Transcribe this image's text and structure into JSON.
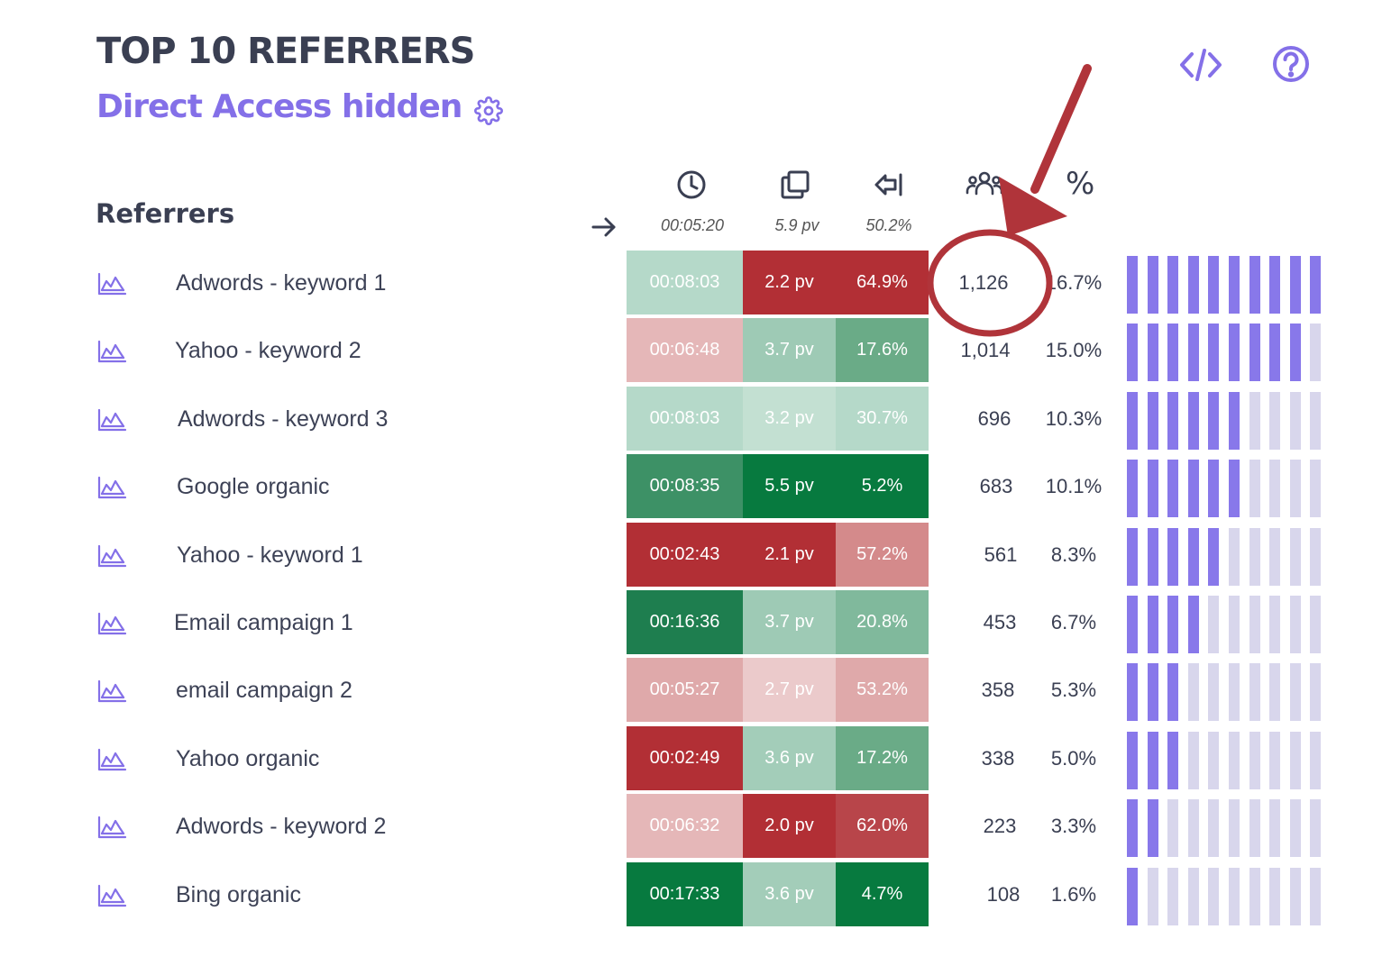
{
  "header": {
    "title": "TOP 10 REFERRERS",
    "subtitle": "Direct Access hidden",
    "icons": [
      "gear-icon",
      "code-icon",
      "help-icon"
    ]
  },
  "table": {
    "section_label": "Referrers",
    "columns": [
      {
        "icon": "clock-icon",
        "average": "00:05:20"
      },
      {
        "icon": "pages-icon",
        "average": "5.9 pv"
      },
      {
        "icon": "exit-icon",
        "average": "50.2%"
      },
      {
        "icon": "users-icon"
      },
      {
        "icon": "percent-icon",
        "label": "%"
      }
    ],
    "rows": [
      {
        "name": "Adwords - keyword 1",
        "time": "00:08:03",
        "pv": "2.2 pv",
        "bounce": "64.9%",
        "visits": "1,126",
        "pct": "16.7%",
        "share_segments": 10,
        "colors": {
          "time": "#b5d9c9",
          "pv": "#b22f35",
          "bounce": "#b22f35"
        }
      },
      {
        "name": "Yahoo - keyword 2",
        "time": "00:06:48",
        "pv": "3.7 pv",
        "bounce": "17.6%",
        "visits": "1,014",
        "pct": "15.0%",
        "share_segments": 9,
        "colors": {
          "time": "#e5b7b8",
          "pv": "#9ecab5",
          "bounce": "#6aab87"
        }
      },
      {
        "name": "Adwords - keyword 3",
        "time": "00:08:03",
        "pv": "3.2 pv",
        "bounce": "30.7%",
        "visits": "696",
        "pct": "10.3%",
        "share_segments": 6,
        "colors": {
          "time": "#b5d9c9",
          "pv": "#c3e0d2",
          "bounce": "#b5d9c9"
        }
      },
      {
        "name": "Google organic",
        "time": "00:08:35",
        "pv": "5.5 pv",
        "bounce": "5.2%",
        "visits": "683",
        "pct": "10.1%",
        "share_segments": 6,
        "colors": {
          "time": "#3d9166",
          "pv": "#077a3f",
          "bounce": "#077a3f"
        }
      },
      {
        "name": "Yahoo - keyword 1",
        "time": "00:02:43",
        "pv": "2.1 pv",
        "bounce": "57.2%",
        "visits": "561",
        "pct": "8.3%",
        "share_segments": 5,
        "colors": {
          "time": "#b22f35",
          "pv": "#b22f35",
          "bounce": "#d48a8b"
        }
      },
      {
        "name": "Email campaign 1",
        "time": "00:16:36",
        "pv": "3.7 pv",
        "bounce": "20.8%",
        "visits": "453",
        "pct": "6.7%",
        "share_segments": 4,
        "colors": {
          "time": "#1e7e4f",
          "pv": "#9ecab5",
          "bounce": "#80b99c"
        }
      },
      {
        "name": "email campaign 2",
        "time": "00:05:27",
        "pv": "2.7 pv",
        "bounce": "53.2%",
        "visits": "358",
        "pct": "5.3%",
        "share_segments": 3,
        "colors": {
          "time": "#dfa9aa",
          "pv": "#ebcacb",
          "bounce": "#dfa9aa"
        }
      },
      {
        "name": "Yahoo organic",
        "time": "00:02:49",
        "pv": "3.6 pv",
        "bounce": "17.2%",
        "visits": "338",
        "pct": "5.0%",
        "share_segments": 3,
        "colors": {
          "time": "#b22f35",
          "pv": "#a3cdb9",
          "bounce": "#6aab87"
        }
      },
      {
        "name": "Adwords - keyword 2",
        "time": "00:06:32",
        "pv": "2.0 pv",
        "bounce": "62.0%",
        "visits": "223",
        "pct": "3.3%",
        "share_segments": 2,
        "colors": {
          "time": "#e5b7b8",
          "pv": "#b22f35",
          "bounce": "#b8454a"
        }
      },
      {
        "name": "Bing organic",
        "time": "00:17:33",
        "pv": "3.6 pv",
        "bounce": "4.7%",
        "visits": "108",
        "pct": "1.6%",
        "share_segments": 1,
        "colors": {
          "time": "#077a3f",
          "pv": "#a3cdb9",
          "bounce": "#077a3f"
        }
      }
    ]
  },
  "colors": {
    "accent": "#8470e8",
    "bar_filled": "#8878ea",
    "bar_empty": "#d8d6ec",
    "annotation": "#b0343a"
  }
}
